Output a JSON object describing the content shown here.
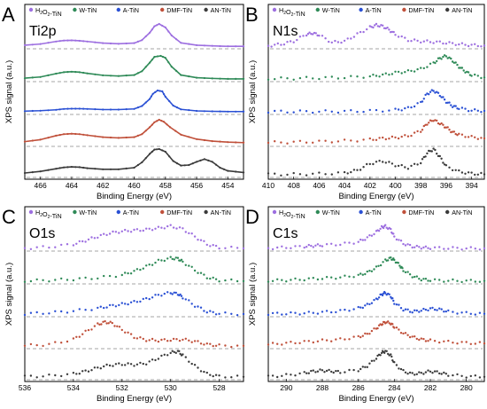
{
  "series_names": [
    "H2O2-TiN",
    "W-TiN",
    "A-TiN",
    "DMF-TiN",
    "AN-TiN"
  ],
  "series_colors": [
    "#9d6fe0",
    "#2e8a57",
    "#2a50d4",
    "#c0503a",
    "#3a3a3a"
  ],
  "chart_data": [
    {
      "letter": "A",
      "name": "Ti2p",
      "type": "line",
      "xlabel": "Binding Energy (eV)",
      "ylabel": "XPS signal (a.u.)",
      "xlim": [
        467,
        453
      ],
      "xticks": [
        466,
        464,
        462,
        460,
        458,
        456,
        454
      ],
      "series": [
        {
          "name": "H2O2-TiN",
          "x": [
            467,
            466,
            465,
            464.5,
            464,
            463.5,
            463,
            462,
            461,
            460,
            459.5,
            459,
            458.7,
            458.4,
            458,
            457.6,
            457,
            456,
            455,
            454,
            453
          ],
          "y": [
            0.08,
            0.13,
            0.24,
            0.28,
            0.29,
            0.27,
            0.24,
            0.17,
            0.14,
            0.17,
            0.3,
            0.62,
            0.9,
            1.0,
            0.85,
            0.5,
            0.18,
            0.08,
            0.05,
            0.03,
            0.03
          ]
        },
        {
          "name": "W-TiN",
          "x": [
            467,
            466,
            465,
            464.5,
            464,
            463.5,
            463,
            462,
            461,
            460,
            459.5,
            459,
            458.7,
            458.3,
            458,
            457.6,
            457,
            456,
            455,
            454,
            453
          ],
          "y": [
            0.07,
            0.12,
            0.26,
            0.32,
            0.34,
            0.32,
            0.27,
            0.19,
            0.16,
            0.2,
            0.36,
            0.72,
            0.96,
            1.0,
            0.92,
            0.55,
            0.2,
            0.09,
            0.06,
            0.04,
            0.04
          ]
        },
        {
          "name": "A-TiN",
          "x": [
            467,
            466,
            465,
            464.5,
            464,
            463.5,
            463,
            462,
            461,
            460,
            459.5,
            459,
            458.8,
            458.5,
            458.2,
            458,
            457.5,
            457,
            456,
            455,
            454,
            453
          ],
          "y": [
            0.07,
            0.09,
            0.13,
            0.17,
            0.18,
            0.18,
            0.17,
            0.14,
            0.14,
            0.17,
            0.3,
            0.62,
            0.85,
            1.0,
            0.96,
            0.72,
            0.32,
            0.15,
            0.08,
            0.06,
            0.05,
            0.05
          ]
        },
        {
          "name": "DMF-TiN",
          "x": [
            467,
            466,
            465,
            464.5,
            464,
            463.5,
            463,
            462,
            461,
            460,
            459.5,
            459,
            458.7,
            458.4,
            458.1,
            457.7,
            457,
            456,
            455,
            454,
            453
          ],
          "y": [
            0.12,
            0.2,
            0.36,
            0.42,
            0.44,
            0.42,
            0.38,
            0.3,
            0.27,
            0.3,
            0.42,
            0.7,
            0.9,
            1.0,
            0.92,
            0.7,
            0.4,
            0.22,
            0.14,
            0.1,
            0.08
          ]
        },
        {
          "name": "AN-TiN",
          "x": [
            467,
            466,
            465,
            464.5,
            464,
            463.5,
            463,
            462,
            461,
            460,
            459.5,
            459,
            458.7,
            458.4,
            458,
            457.5,
            457,
            456.5,
            456,
            455.5,
            455,
            454.5,
            454,
            453
          ],
          "y": [
            0.1,
            0.16,
            0.26,
            0.31,
            0.33,
            0.32,
            0.28,
            0.24,
            0.24,
            0.3,
            0.5,
            0.82,
            0.98,
            1.0,
            0.9,
            0.55,
            0.38,
            0.4,
            0.52,
            0.62,
            0.52,
            0.3,
            0.18,
            0.12
          ]
        }
      ]
    },
    {
      "letter": "B",
      "name": "N1s",
      "type": "scatter",
      "xlabel": "Binding Energy (eV)",
      "ylabel": "XPS signal (a.u.)",
      "xlim": [
        410,
        393
      ],
      "xticks": [
        410,
        408,
        406,
        404,
        402,
        400,
        398,
        396,
        394
      ],
      "series": [
        {
          "name": "H2O2-TiN",
          "x": [
            410,
            409,
            408,
            407,
            406.5,
            406,
            405,
            404,
            403,
            402,
            401.5,
            401,
            400.5,
            400,
            399,
            398,
            397,
            396,
            395,
            394,
            393
          ],
          "y": [
            0.05,
            0.12,
            0.25,
            0.55,
            0.6,
            0.52,
            0.2,
            0.25,
            0.55,
            0.85,
            0.95,
            0.9,
            0.75,
            0.55,
            0.3,
            0.25,
            0.22,
            0.18,
            0.12,
            0.08,
            0.06
          ]
        },
        {
          "name": "W-TiN",
          "x": [
            410,
            408,
            406,
            404,
            402,
            401,
            400,
            399,
            398,
            397,
            396.5,
            396,
            395.5,
            395,
            394.5,
            394,
            393
          ],
          "y": [
            0.05,
            0.06,
            0.08,
            0.1,
            0.15,
            0.2,
            0.3,
            0.35,
            0.45,
            0.7,
            0.9,
            1.0,
            0.8,
            0.55,
            0.35,
            0.2,
            0.1
          ]
        },
        {
          "name": "A-TiN",
          "x": [
            410,
            408,
            406,
            404,
            402,
            400,
            399,
            398,
            397.5,
            397,
            396.5,
            396,
            395.5,
            395,
            394,
            393
          ],
          "y": [
            0.05,
            0.05,
            0.05,
            0.06,
            0.08,
            0.12,
            0.2,
            0.45,
            0.85,
            1.0,
            0.8,
            0.5,
            0.3,
            0.2,
            0.1,
            0.08
          ]
        },
        {
          "name": "DMF-TiN",
          "x": [
            410,
            408,
            406,
            404,
            402,
            401,
            400,
            399,
            398,
            397.5,
            397,
            396.5,
            396,
            395.5,
            395,
            394,
            393
          ],
          "y": [
            0.08,
            0.1,
            0.12,
            0.15,
            0.2,
            0.25,
            0.28,
            0.35,
            0.55,
            0.85,
            1.0,
            0.85,
            0.7,
            0.5,
            0.4,
            0.3,
            0.25
          ]
        },
        {
          "name": "AN-TiN",
          "x": [
            410,
            408,
            406,
            404,
            403,
            402,
            401,
            400,
            399,
            398,
            397.5,
            397,
            396.5,
            396,
            395,
            394,
            393
          ],
          "y": [
            0.05,
            0.05,
            0.07,
            0.1,
            0.2,
            0.45,
            0.55,
            0.4,
            0.3,
            0.5,
            0.85,
            1.0,
            0.7,
            0.35,
            0.15,
            0.08,
            0.05
          ]
        }
      ]
    },
    {
      "letter": "C",
      "name": "O1s",
      "type": "scatter",
      "xlabel": "Binding Energy (eV)",
      "ylabel": "XPS signal (a.u.)",
      "xlim": [
        536,
        527
      ],
      "xticks": [
        536,
        534,
        532,
        530,
        528
      ],
      "series": [
        {
          "name": "H2O2-TiN",
          "x": [
            536,
            535,
            534,
            533.5,
            533,
            532.5,
            532,
            531.5,
            531,
            530.5,
            530,
            529.5,
            529,
            528.5,
            528,
            527
          ],
          "y": [
            0.05,
            0.1,
            0.22,
            0.38,
            0.55,
            0.7,
            0.78,
            0.82,
            0.85,
            0.92,
            1.0,
            0.88,
            0.55,
            0.22,
            0.08,
            0.04
          ]
        },
        {
          "name": "W-TiN",
          "x": [
            536,
            535,
            534,
            533,
            532,
            531.5,
            531,
            530.5,
            530,
            529.7,
            529.5,
            529,
            528.5,
            528,
            527
          ],
          "y": [
            0.05,
            0.08,
            0.12,
            0.18,
            0.3,
            0.45,
            0.65,
            0.88,
            1.0,
            0.98,
            0.85,
            0.5,
            0.2,
            0.08,
            0.04
          ]
        },
        {
          "name": "A-TiN",
          "x": [
            536,
            535,
            534,
            533,
            532.5,
            532,
            531.5,
            531,
            530.5,
            530,
            529.7,
            529.5,
            529,
            528.5,
            528,
            527
          ],
          "y": [
            0.05,
            0.1,
            0.18,
            0.3,
            0.4,
            0.48,
            0.58,
            0.72,
            0.9,
            1.0,
            0.95,
            0.8,
            0.42,
            0.15,
            0.06,
            0.04
          ]
        },
        {
          "name": "DMF-TiN",
          "x": [
            536,
            535,
            534,
            533.5,
            533,
            532.7,
            532.4,
            532,
            531.5,
            531,
            530.5,
            530,
            529.5,
            529,
            528.5,
            528,
            527
          ],
          "y": [
            0.05,
            0.1,
            0.3,
            0.6,
            0.9,
            1.0,
            0.95,
            0.7,
            0.4,
            0.28,
            0.26,
            0.28,
            0.3,
            0.22,
            0.1,
            0.05,
            0.04
          ]
        },
        {
          "name": "AN-TiN",
          "x": [
            536,
            535,
            534,
            533.5,
            533,
            532.5,
            532,
            531.5,
            531,
            530.5,
            530,
            529.7,
            529.5,
            529,
            528.5,
            528,
            527
          ],
          "y": [
            0.05,
            0.08,
            0.15,
            0.25,
            0.38,
            0.48,
            0.52,
            0.5,
            0.55,
            0.75,
            0.95,
            1.0,
            0.85,
            0.45,
            0.15,
            0.06,
            0.04
          ]
        }
      ]
    },
    {
      "letter": "D",
      "name": "C1s",
      "type": "scatter",
      "xlabel": "Binding Energy (eV)",
      "ylabel": "XPS signal (a.u.)",
      "xlim": [
        291,
        279
      ],
      "xticks": [
        290,
        288,
        286,
        284,
        282,
        280
      ],
      "series": [
        {
          "name": "H2O2-TiN",
          "x": [
            291,
            290,
            289,
            288.5,
            288,
            287,
            286,
            285.5,
            285,
            284.7,
            284.5,
            284.2,
            284,
            283.5,
            283,
            282.5,
            282,
            281,
            280,
            279
          ],
          "y": [
            0.05,
            0.08,
            0.12,
            0.15,
            0.18,
            0.22,
            0.32,
            0.5,
            0.75,
            0.95,
            1.0,
            0.85,
            0.55,
            0.25,
            0.12,
            0.08,
            0.06,
            0.05,
            0.04,
            0.04
          ]
        },
        {
          "name": "W-TiN",
          "x": [
            291,
            290,
            289,
            288,
            287,
            286,
            285.5,
            285,
            284.5,
            284.2,
            284,
            283.7,
            283.5,
            283,
            282.5,
            282,
            281,
            280,
            279
          ],
          "y": [
            0.06,
            0.08,
            0.12,
            0.16,
            0.2,
            0.28,
            0.4,
            0.6,
            0.9,
            1.0,
            0.92,
            0.7,
            0.5,
            0.25,
            0.12,
            0.08,
            0.06,
            0.05,
            0.05
          ]
        },
        {
          "name": "A-TiN",
          "x": [
            291,
            290,
            289,
            288,
            287,
            286,
            285.5,
            285,
            284.7,
            284.5,
            284.2,
            284,
            283.5,
            283,
            282.5,
            282,
            281.5,
            281,
            280,
            279
          ],
          "y": [
            0.05,
            0.06,
            0.08,
            0.12,
            0.18,
            0.3,
            0.45,
            0.7,
            0.92,
            1.0,
            0.85,
            0.55,
            0.25,
            0.15,
            0.2,
            0.28,
            0.25,
            0.15,
            0.08,
            0.05
          ]
        },
        {
          "name": "DMF-TiN",
          "x": [
            291,
            290,
            289,
            288,
            287,
            286,
            285.5,
            285,
            284.7,
            284.5,
            284.2,
            284,
            283.5,
            283,
            282.5,
            282,
            281,
            280,
            279
          ],
          "y": [
            0.1,
            0.15,
            0.2,
            0.25,
            0.3,
            0.4,
            0.52,
            0.75,
            0.92,
            1.0,
            0.95,
            0.8,
            0.55,
            0.4,
            0.3,
            0.25,
            0.2,
            0.16,
            0.14
          ]
        },
        {
          "name": "AN-TiN",
          "x": [
            291,
            290,
            289,
            288.5,
            288,
            287.5,
            287,
            286,
            285.5,
            285,
            284.7,
            284.5,
            284.2,
            284,
            283.5,
            283,
            282.5,
            282,
            281.5,
            281,
            280,
            279
          ],
          "y": [
            0.05,
            0.1,
            0.18,
            0.25,
            0.28,
            0.25,
            0.22,
            0.3,
            0.45,
            0.75,
            0.95,
            1.0,
            0.85,
            0.55,
            0.25,
            0.15,
            0.18,
            0.25,
            0.2,
            0.12,
            0.06,
            0.04
          ]
        }
      ]
    }
  ]
}
